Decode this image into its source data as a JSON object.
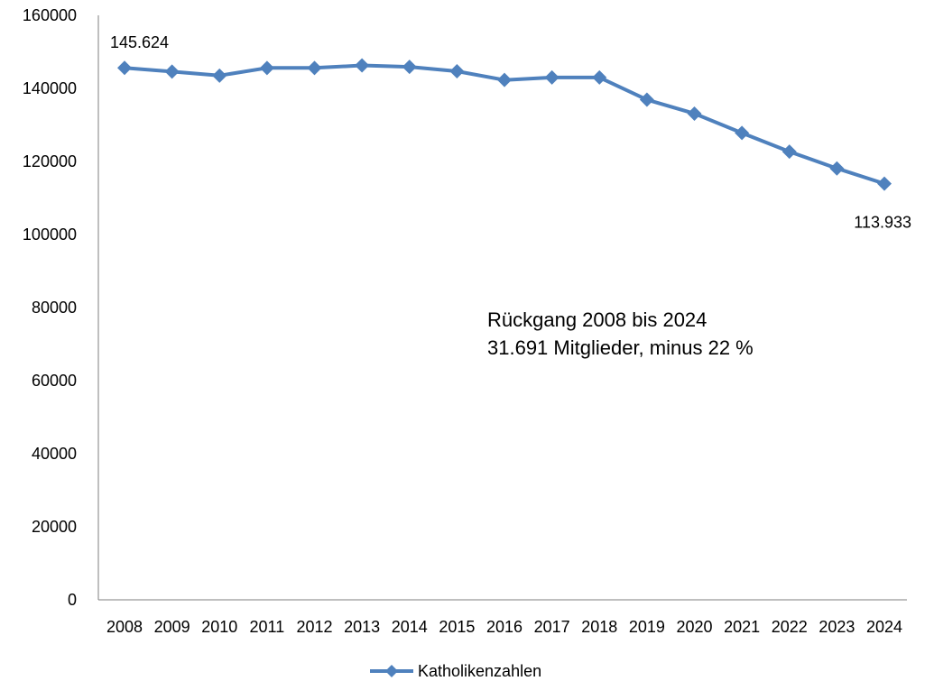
{
  "chart_data": {
    "type": "line",
    "title": "",
    "xlabel": "",
    "ylabel": "",
    "categories": [
      "2008",
      "2009",
      "2010",
      "2011",
      "2012",
      "2013",
      "2014",
      "2015",
      "2016",
      "2017",
      "2018",
      "2019",
      "2020",
      "2021",
      "2022",
      "2023",
      "2024"
    ],
    "series": [
      {
        "name": "Katholikenzahlen",
        "color": "#4f81bd",
        "marker": "diamond",
        "values": [
          145624,
          144600,
          143500,
          145600,
          145600,
          146300,
          145900,
          144700,
          142300,
          143000,
          143000,
          136900,
          133100,
          127800,
          122700,
          118100,
          113933
        ]
      }
    ],
    "ylim": [
      0,
      160000
    ],
    "yticks": [
      0,
      20000,
      40000,
      60000,
      80000,
      100000,
      120000,
      140000,
      160000
    ],
    "ytick_labels": [
      "0",
      "20000",
      "40000",
      "60000",
      "80000",
      "100000",
      "120000",
      "140000",
      "160000"
    ],
    "grid": false,
    "legend_position": "bottom",
    "data_labels": [
      {
        "category": "2008",
        "text": "145.624"
      },
      {
        "category": "2024",
        "text": "113.933"
      }
    ],
    "annotation": {
      "line1": "Rückgang 2008 bis 2024",
      "line2": "31.691 Mitglieder, minus 22 %"
    }
  }
}
